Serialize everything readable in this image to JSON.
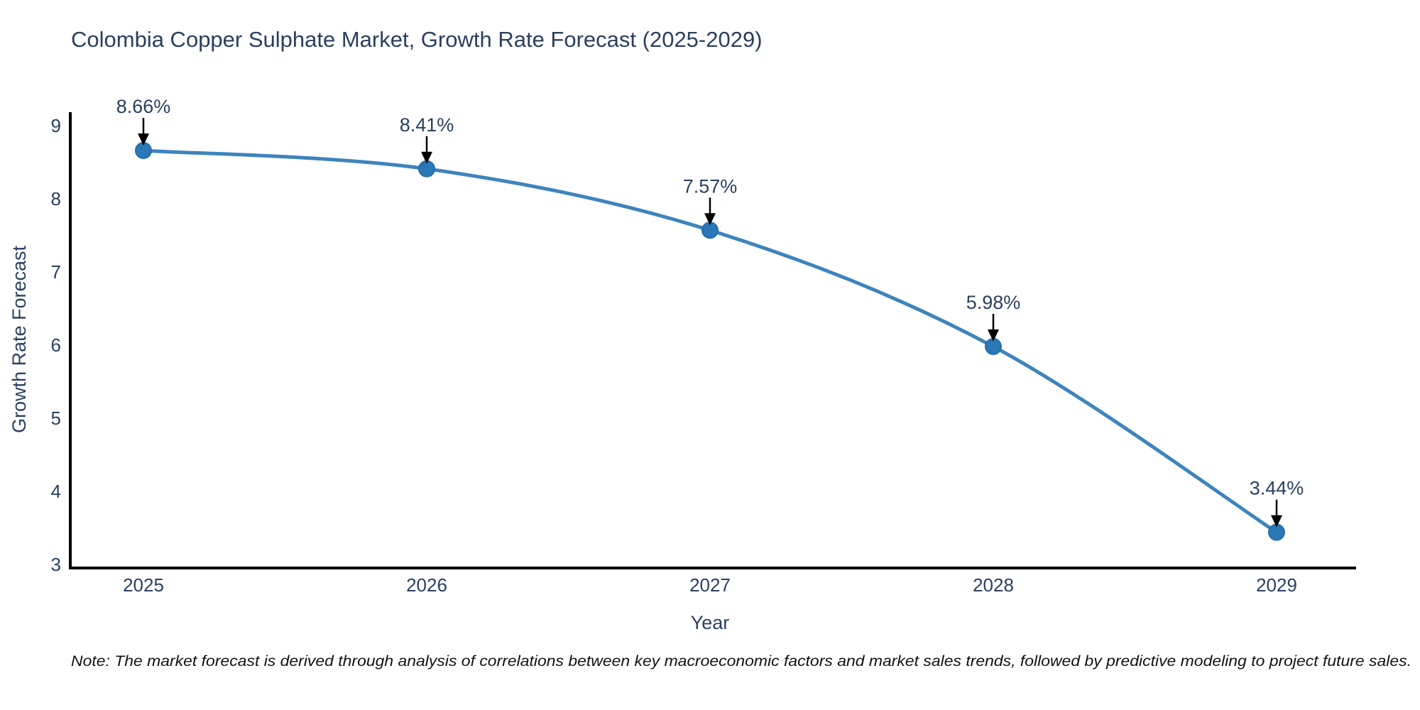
{
  "chart_data": {
    "type": "line",
    "title": "Colombia Copper Sulphate Market, Growth Rate Forecast (2025-2029)",
    "xlabel": "Year",
    "ylabel": "Growth Rate Forecast",
    "categories": [
      "2025",
      "2026",
      "2027",
      "2028",
      "2029"
    ],
    "series": [
      {
        "name": "Growth Rate Forecast",
        "values": [
          8.66,
          8.41,
          7.57,
          5.98,
          3.44
        ],
        "point_labels": [
          "8.66%",
          "8.41%",
          "7.57%",
          "5.98%",
          "3.44%"
        ]
      }
    ],
    "yticks": [
      "3",
      "4",
      "5",
      "6",
      "7",
      "8",
      "9"
    ],
    "ylim": [
      3,
      9
    ],
    "grid": false,
    "legend": "none",
    "line_shape": "spline",
    "colors": {
      "line": "#3e84bd",
      "marker": "#2a78b8",
      "marker_edge": "#276da6",
      "axis": "#000000",
      "text": "#2a3f5f",
      "annotation_arrow": "#000000",
      "note_text": "#111111",
      "background": "#ffffff"
    },
    "note": "Note: The market forecast is derived through analysis of correlations between key macroeconomic factors and market sales trends, followed by predictive modeling to project future sales."
  }
}
